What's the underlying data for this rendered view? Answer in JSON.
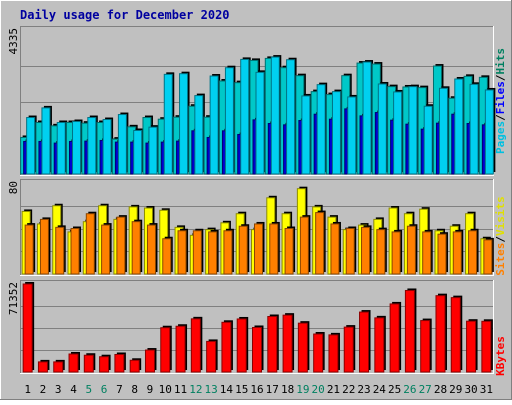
{
  "chart_data": {
    "type": "bar",
    "title": "Daily usage for December 2020",
    "categories": [
      "1",
      "2",
      "3",
      "4",
      "5",
      "6",
      "7",
      "8",
      "9",
      "10",
      "11",
      "12",
      "13",
      "14",
      "15",
      "16",
      "17",
      "18",
      "19",
      "20",
      "21",
      "22",
      "23",
      "24",
      "25",
      "26",
      "27",
      "28",
      "29",
      "30",
      "31"
    ],
    "weekend_days": [
      "5",
      "6",
      "12",
      "13",
      "19",
      "20",
      "26",
      "27"
    ],
    "panels": [
      {
        "id": "pages",
        "ymax_label": "4335",
        "ylim": [
          0,
          4335
        ],
        "legend": [
          {
            "label": "Pages",
            "color": "#00c0e0"
          },
          {
            "label": "/",
            "color": "#000000"
          },
          {
            "label": "Files",
            "color": "#0000ff"
          },
          {
            "label": "/",
            "color": "#000000"
          },
          {
            "label": "Hits",
            "color": "#008060"
          }
        ],
        "series": [
          {
            "name": "Hits",
            "color": "#00c8c8",
            "values": [
              1100,
              1550,
              1450,
              1550,
              1530,
              1550,
              1050,
              1420,
              1700,
              1650,
              1710,
              2040,
              1710,
              2800,
              2750,
              3420,
              3480,
              3200,
              2960,
              2480,
              2390,
              2960,
              3340,
              3310,
              2630,
              2620,
              2600,
              3250,
              2280,
              2940,
              2910
            ]
          },
          {
            "name": "Files",
            "color": "#0000d0",
            "values": [
              980,
              980,
              930,
              980,
              990,
              1010,
              960,
              960,
              930,
              960,
              990,
              1300,
              1100,
              1300,
              1190,
              1630,
              1520,
              1480,
              1610,
              1800,
              1650,
              1960,
              1750,
              1850,
              1620,
              1500,
              1350,
              1530,
              1800,
              1520,
              1480
            ]
          },
          {
            "name": "Pages",
            "color": "#00d0f0",
            "values": [
              1700,
              1990,
              1550,
              1580,
              1700,
              1640,
              1790,
              1310,
              1410,
              3000,
              3020,
              2360,
              2950,
              3200,
              3450,
              3060,
              3520,
              3440,
              2350,
              2690,
              2480,
              2320,
              3370,
              2710,
              2470,
              2630,
              2040,
              2580,
              2860,
              2700,
              2530
            ]
          }
        ]
      },
      {
        "id": "visits",
        "ymax_label": "80",
        "ylim": [
          0,
          80
        ],
        "legend": [
          {
            "label": "Sites",
            "color": "#ff8000"
          },
          {
            "label": "/",
            "color": "#000000"
          },
          {
            "label": "Visits",
            "color": "#e0e000"
          }
        ],
        "series": [
          {
            "name": "Visits",
            "color": "#ffff00",
            "values": [
              55,
              44,
              60,
              37,
              46,
              60,
              48,
              59,
              58,
              56,
              41,
              34,
              39,
              45,
              53,
              39,
              67,
              53,
              75,
              59,
              50,
              39,
              43,
              48,
              58,
              53,
              57,
              38,
              42,
              53,
              31
            ]
          },
          {
            "name": "Sites",
            "color": "#ff8000",
            "values": [
              43,
              48,
              41,
              40,
              53,
              43,
              50,
              46,
              43,
              31,
              38,
              38,
              37,
              38,
              42,
              44,
              44,
              40,
              50,
              54,
              44,
              40,
              41,
              39,
              37,
              42,
              37,
              35,
              37,
              38,
              30
            ]
          }
        ]
      },
      {
        "id": "kbytes",
        "ymax_label": "71352",
        "ylim": [
          0,
          71352
        ],
        "legend": [
          {
            "label": "KBytes",
            "color": "#ff0000"
          }
        ],
        "series": [
          {
            "name": "KBytes",
            "color": "#ff0000",
            "values": [
              71352,
              8200,
              8200,
              14600,
              13600,
              12400,
              14200,
              9500,
              17800,
              35900,
              37100,
              43100,
              24800,
              40300,
              43000,
              36100,
              45000,
              46100,
              39600,
              30800,
              30100,
              36400,
              48600,
              43900,
              55200,
              66100,
              41700,
              61900,
              60300,
              41200,
              41100
            ]
          }
        ]
      }
    ]
  }
}
